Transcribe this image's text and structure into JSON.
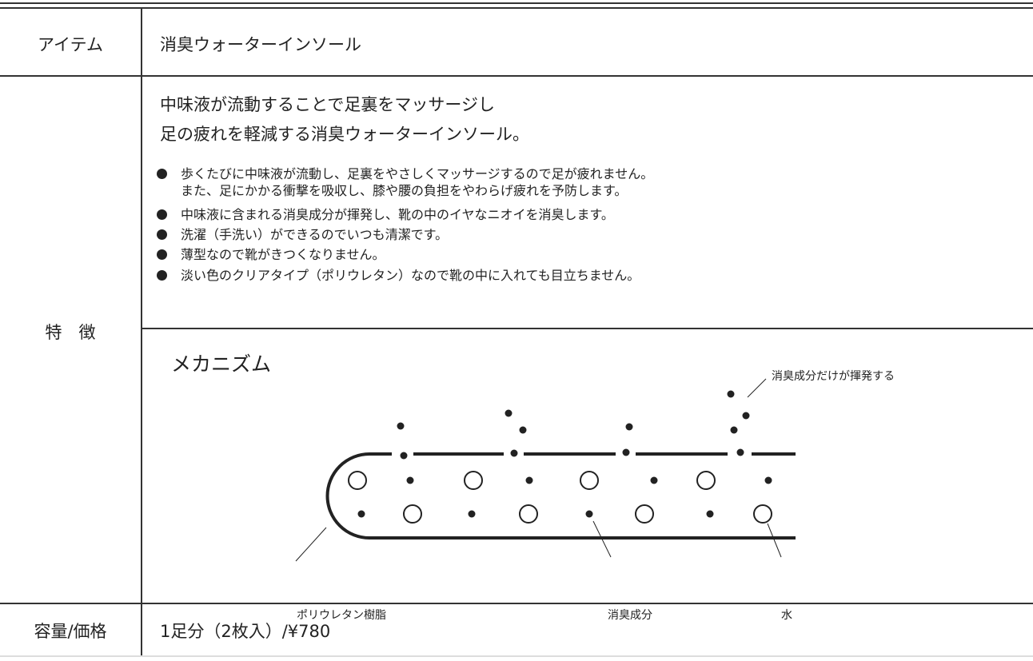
{
  "table": {
    "rows": [
      {
        "label": "アイテム",
        "content": "消臭ウォーターインソール"
      },
      {
        "label": "特　徴",
        "headline": [
          "中味液が流動することで足裏をマッサージし",
          "足の疲れを軽減する消臭ウォーターインソール。"
        ],
        "bullets": [
          [
            "歩くたびに中味液が流動し、足裏をやさしくマッサージするので足が疲れません。",
            "また、足にかかる衝撃を吸収し、膝や腰の負担をやわらげ疲れを予防します。"
          ],
          [
            "中味液に含まれる消臭成分が揮発し、靴の中のイヤなニオイを消臭します。"
          ],
          [
            "洗濯（手洗い）ができるのでいつも清潔です。"
          ],
          [
            "薄型なので靴がきつくなりません。"
          ],
          [
            "淡い色のクリアタイプ（ポリウレタン）なので靴の中に入れても目立ちません。"
          ]
        ],
        "mechanism": {
          "title": "メカニズム",
          "labels": [
            "消臭成分だけが揮発する",
            "ポリウレタン樹脂",
            "消臭成分",
            "水"
          ]
        }
      },
      {
        "label": "容量/価格",
        "content": "1足分（2枚入）/¥780"
      }
    ]
  }
}
